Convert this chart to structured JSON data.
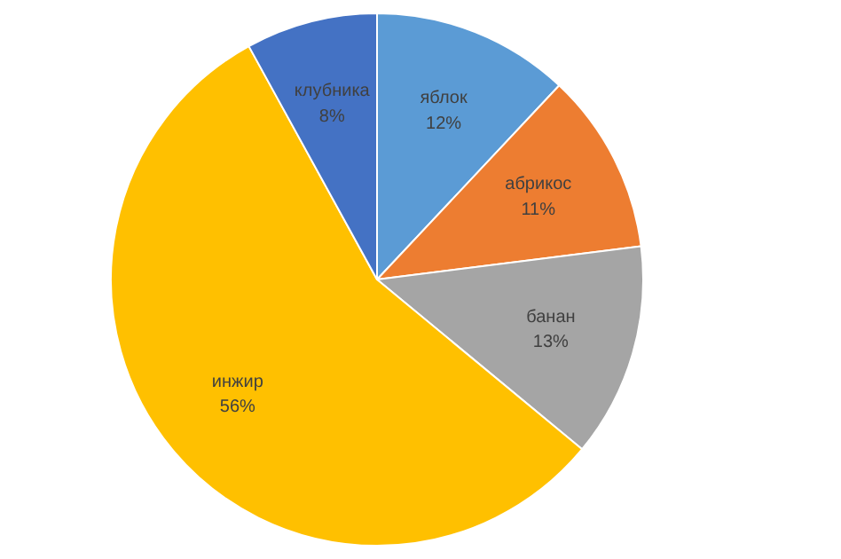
{
  "chart_data": {
    "type": "pie",
    "categories": [
      "яблок",
      "абрикос",
      "банан",
      "инжир",
      "клубника"
    ],
    "values": [
      12,
      11,
      13,
      56,
      8
    ],
    "value_labels": [
      "12%",
      "11%",
      "13%",
      "56%",
      "8%"
    ],
    "colors": [
      "#5b9bd5",
      "#ed7d31",
      "#a5a5a5",
      "#ffc000",
      "#4472c4"
    ],
    "legend": false
  }
}
